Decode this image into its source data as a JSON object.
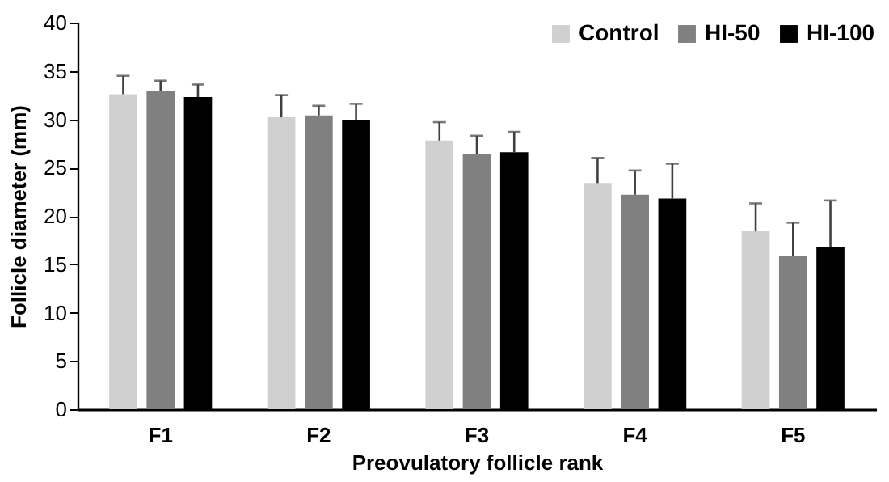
{
  "chart_data": {
    "type": "bar",
    "xlabel": "Preovulatory follicle rank",
    "ylabel": "Follicle diameter (mm)",
    "categories": [
      "F1",
      "F2",
      "F3",
      "F4",
      "F5"
    ],
    "series": [
      {
        "name": "Control",
        "color": "#d0d0d0",
        "values": [
          32.6,
          30.2,
          27.8,
          23.4,
          18.4
        ],
        "errors": [
          [
            32.6,
            34.5
          ],
          [
            30.2,
            32.5
          ],
          [
            27.8,
            29.7
          ],
          [
            23.4,
            26.0
          ],
          [
            18.4,
            21.3
          ]
        ]
      },
      {
        "name": "HI-50",
        "color": "#808080",
        "values": [
          32.9,
          30.4,
          26.4,
          22.2,
          15.9
        ],
        "errors": [
          [
            32.9,
            34.0
          ],
          [
            30.4,
            31.4
          ],
          [
            26.4,
            28.3
          ],
          [
            22.2,
            24.7
          ],
          [
            15.9,
            19.3
          ]
        ]
      },
      {
        "name": "HI-100",
        "color": "#000000",
        "values": [
          32.3,
          29.9,
          26.6,
          21.8,
          16.8
        ],
        "errors": [
          [
            32.3,
            33.6
          ],
          [
            29.9,
            31.6
          ],
          [
            26.6,
            28.7
          ],
          [
            21.8,
            25.4
          ],
          [
            16.8,
            21.6
          ]
        ]
      }
    ],
    "ylim": [
      0,
      40
    ],
    "yticks": [
      0,
      5,
      10,
      15,
      20,
      25,
      30,
      35,
      40
    ],
    "grid": false,
    "legend": "top right"
  }
}
